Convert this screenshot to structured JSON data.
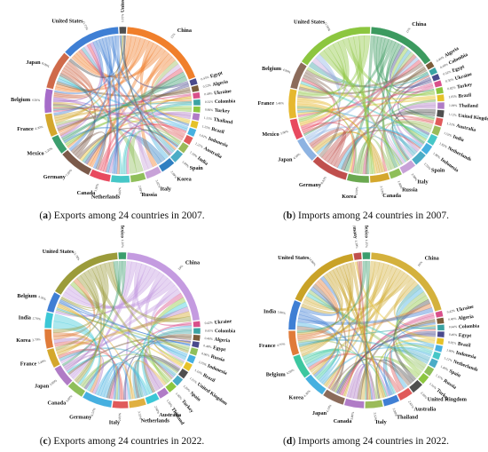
{
  "panels": [
    {
      "letter": "a",
      "caption": "Exports among 24 countries in 2007.",
      "countries": [
        {
          "name": "China",
          "share": 18.5,
          "pct": "15%",
          "color": "#f07f2b"
        },
        {
          "name": "Egypt",
          "share": 1.3,
          "pct": "0.43%",
          "color": "#4a4a8c"
        },
        {
          "name": "Algeria",
          "share": 1.3,
          "pct": "0.52%",
          "color": "#7a5c3a"
        },
        {
          "name": "Ukraine",
          "share": 1.3,
          "pct": "0.48%",
          "color": "#d94f8a"
        },
        {
          "name": "Colombia",
          "share": 1.3,
          "pct": "0.32%",
          "color": "#3aa3a3"
        },
        {
          "name": "Turkey",
          "share": 1.3,
          "pct": "0.88%",
          "color": "#8cc63f"
        },
        {
          "name": "Thailand",
          "share": 1.5,
          "pct": "1.31%",
          "color": "#b07cc6"
        },
        {
          "name": "Brazil",
          "share": 1.5,
          "pct": "1.25%",
          "color": "#e6c229"
        },
        {
          "name": "Indonesia",
          "share": 1.6,
          "pct": "1.02%",
          "color": "#46b0e0"
        },
        {
          "name": "Australia",
          "share": 1.7,
          "pct": "1.21%",
          "color": "#e05a5a"
        },
        {
          "name": "India",
          "share": 1.9,
          "pct": "1.50%",
          "color": "#9bbb59"
        },
        {
          "name": "Spain",
          "share": 2.4,
          "pct": "1.89%",
          "color": "#4bacc6"
        },
        {
          "name": "Korea",
          "share": 3.1,
          "pct": "2.89%",
          "color": "#2f7fc1"
        },
        {
          "name": "Italy",
          "share": 3.3,
          "pct": "3.02%",
          "color": "#c8a2d8"
        },
        {
          "name": "Russia",
          "share": 3.2,
          "pct": "2.89%",
          "color": "#8fbf5a"
        },
        {
          "name": "Netherlands",
          "share": 4.0,
          "pct": "3.86%",
          "color": "#46c7c7"
        },
        {
          "name": "Canada",
          "share": 4.4,
          "pct": "3.90%",
          "color": "#e84a5f"
        },
        {
          "name": "Germany",
          "share": 7.0,
          "pct": "7.09%",
          "color": "#7b5a4a"
        },
        {
          "name": "Mexico",
          "share": 3.9,
          "pct": "3.20%",
          "color": "#3b9e6e"
        },
        {
          "name": "France",
          "share": 4.9,
          "pct": "4.30%",
          "color": "#d4a72c"
        },
        {
          "name": "Belgium",
          "share": 5.1,
          "pct": "4.50%",
          "color": "#a66cc9"
        },
        {
          "name": "Japan",
          "share": 8.2,
          "pct": "8.00%",
          "color": "#cf6a4a"
        },
        {
          "name": "United States",
          "share": 12.5,
          "pct": "11.72%",
          "color": "#3f7fd4"
        },
        {
          "name": "United Kingdom",
          "share": 1.5,
          "pct": "1.03%",
          "color": "#4f4f4f"
        }
      ]
    },
    {
      "letter": "b",
      "caption": "Imports among 24 countries in 2007.",
      "countries": [
        {
          "name": "China",
          "share": 14.0,
          "pct": "11%",
          "color": "#3c9a5f"
        },
        {
          "name": "Algeria",
          "share": 1.2,
          "pct": "0.40%",
          "color": "#7a5c3a"
        },
        {
          "name": "Colombia",
          "share": 1.2,
          "pct": "0.44%",
          "color": "#3aa3a3"
        },
        {
          "name": "Egypt",
          "share": 1.2,
          "pct": "0.52%",
          "color": "#4a4a8c"
        },
        {
          "name": "Ukraine",
          "share": 1.2,
          "pct": "0.50%",
          "color": "#d94f8a"
        },
        {
          "name": "Turkey",
          "share": 1.3,
          "pct": "0.82%",
          "color": "#8cc63f"
        },
        {
          "name": "Brazil",
          "share": 1.4,
          "pct": "1.05%",
          "color": "#e6c229"
        },
        {
          "name": "Thailand",
          "share": 1.4,
          "pct": "1.09%",
          "color": "#b07cc6"
        },
        {
          "name": "United Kingdom",
          "share": 1.5,
          "pct": "1.12%",
          "color": "#4f4f4f"
        },
        {
          "name": "Australia",
          "share": 1.6,
          "pct": "1.21%",
          "color": "#e05a5a"
        },
        {
          "name": "India",
          "share": 1.8,
          "pct": "1.52%",
          "color": "#9bbb59"
        },
        {
          "name": "Netherlands",
          "share": 2.0,
          "pct": "1.82%",
          "color": "#46c7c7"
        },
        {
          "name": "Indonesia",
          "share": 2.0,
          "pct": "1.89%",
          "color": "#46b0e0"
        },
        {
          "name": "Spain",
          "share": 2.7,
          "pct": "2.55%",
          "color": "#4bacc6"
        },
        {
          "name": "Italy",
          "share": 3.0,
          "pct": "2.98%",
          "color": "#c8a2d8"
        },
        {
          "name": "Russia",
          "share": 2.4,
          "pct": "1.90%",
          "color": "#8fbf5a"
        },
        {
          "name": "Canada",
          "share": 4.0,
          "pct": "3.53%",
          "color": "#d4a72c"
        },
        {
          "name": "Korea",
          "share": 4.5,
          "pct": "4.00%",
          "color": "#6aa84f"
        },
        {
          "name": "Germany",
          "share": 7.6,
          "pct": "8.42%",
          "color": "#c0504d"
        },
        {
          "name": "Japan",
          "share": 5.0,
          "pct": "4.50%",
          "color": "#8db3e2"
        },
        {
          "name": "Mexico",
          "share": 4.2,
          "pct": "3.90%",
          "color": "#e84a5f"
        },
        {
          "name": "France",
          "share": 6.0,
          "pct": "5.40%",
          "color": "#e6b82e"
        },
        {
          "name": "Belgium",
          "share": 5.5,
          "pct": "4.90%",
          "color": "#8b6b5a"
        },
        {
          "name": "United States",
          "share": 16.0,
          "pct": "11.99%",
          "color": "#8cc63f"
        }
      ]
    },
    {
      "letter": "c",
      "caption": "Exports among 24 countries in 2022.",
      "countries": [
        {
          "name": "China",
          "share": 21.0,
          "pct": "19%",
          "color": "#c49be0"
        },
        {
          "name": "Ukraine",
          "share": 1.2,
          "pct": "0.42%",
          "color": "#d94f8a"
        },
        {
          "name": "Colombia",
          "share": 1.2,
          "pct": "0.45%",
          "color": "#3aa3a3"
        },
        {
          "name": "Algeria",
          "share": 1.2,
          "pct": "0.40%",
          "color": "#7a5c3a"
        },
        {
          "name": "Egypt",
          "share": 1.2,
          "pct": "0.48%",
          "color": "#4a4a8c"
        },
        {
          "name": "Russia",
          "share": 1.4,
          "pct": "0.96%",
          "color": "#8fbf5a"
        },
        {
          "name": "Indonesia",
          "share": 1.5,
          "pct": "1.05%",
          "color": "#46b0e0"
        },
        {
          "name": "Brazil",
          "share": 1.5,
          "pct": "1.10%",
          "color": "#e6c229"
        },
        {
          "name": "United Kingdom",
          "share": 1.6,
          "pct": "1.21%",
          "color": "#4f4f4f"
        },
        {
          "name": "Spain",
          "share": 1.7,
          "pct": "1.29%",
          "color": "#4bacc6"
        },
        {
          "name": "Turkey",
          "share": 1.8,
          "pct": "1.40%",
          "color": "#8cc63f"
        },
        {
          "name": "Thailand",
          "share": 2.0,
          "pct": "1.58%",
          "color": "#b07cc6"
        },
        {
          "name": "Australia",
          "share": 2.6,
          "pct": "2.60%",
          "color": "#3cc7d6"
        },
        {
          "name": "Netherlands",
          "share": 3.4,
          "pct": "3.33%",
          "color": "#e0b040"
        },
        {
          "name": "Italy",
          "share": 3.2,
          "pct": "2.89%",
          "color": "#e05a5a"
        },
        {
          "name": "Germany",
          "share": 6.0,
          "pct": "6.57%",
          "color": "#46b0e0"
        },
        {
          "name": "Canada",
          "share": 3.4,
          "pct": "3.00%",
          "color": "#8fbf5a"
        },
        {
          "name": "Japan",
          "share": 4.2,
          "pct": "3.80%",
          "color": "#b07cc6"
        },
        {
          "name": "France",
          "share": 3.8,
          "pct": "3.40%",
          "color": "#d4a72c"
        },
        {
          "name": "Korea",
          "share": 3.9,
          "pct": "3.70%",
          "color": "#e07b39"
        },
        {
          "name": "India",
          "share": 3.2,
          "pct": "2.70%",
          "color": "#3cc7d6"
        },
        {
          "name": "Belgium",
          "share": 4.0,
          "pct": "4.30%",
          "color": "#3f7fd4"
        },
        {
          "name": "United States",
          "share": 15.0,
          "pct": "13.78%",
          "color": "#9b9b3a"
        },
        {
          "name": "Mexico",
          "share": 1.6,
          "pct": "1.20%",
          "color": "#3b9e6e"
        }
      ]
    },
    {
      "letter": "d",
      "caption": "Imports among 24 countries in 2022.",
      "countries": [
        {
          "name": "China",
          "share": 19.0,
          "pct": "16%",
          "color": "#d4b13c"
        },
        {
          "name": "Ukraine",
          "share": 1.2,
          "pct": "0.42%",
          "color": "#d94f8a"
        },
        {
          "name": "Algeria",
          "share": 1.2,
          "pct": "0.40%",
          "color": "#7a5c3a"
        },
        {
          "name": "Colombia",
          "share": 1.2,
          "pct": "0.44%",
          "color": "#3aa3a3"
        },
        {
          "name": "Egypt",
          "share": 1.2,
          "pct": "0.49%",
          "color": "#4a4a8c"
        },
        {
          "name": "Brazil",
          "share": 1.3,
          "pct": "0.92%",
          "color": "#e6c229"
        },
        {
          "name": "Indonesia",
          "share": 1.3,
          "pct": "1.00%",
          "color": "#46b0e0"
        },
        {
          "name": "Netherlands",
          "share": 1.4,
          "pct": "1.12%",
          "color": "#46c7c7"
        },
        {
          "name": "Spain",
          "share": 1.6,
          "pct": "1.40%",
          "color": "#4bacc6"
        },
        {
          "name": "Russia",
          "share": 1.7,
          "pct": "1.37%",
          "color": "#8fbf5a"
        },
        {
          "name": "Turkey",
          "share": 1.8,
          "pct": "1.51%",
          "color": "#8cc63f"
        },
        {
          "name": "United Kingdom",
          "share": 2.4,
          "pct": "2.28%",
          "color": "#4f4f4f"
        },
        {
          "name": "Australia",
          "share": 2.8,
          "pct": "2.61%",
          "color": "#e05a5a"
        },
        {
          "name": "Thailand",
          "share": 3.2,
          "pct": "2.98%",
          "color": "#3f7fd4"
        },
        {
          "name": "Italy",
          "share": 3.6,
          "pct": "3.52%",
          "color": "#9bbb59"
        },
        {
          "name": "Canada",
          "share": 4.0,
          "pct": "3.80%",
          "color": "#b07cc6"
        },
        {
          "name": "Japan",
          "share": 4.4,
          "pct": "4.10%",
          "color": "#8b6b5a"
        },
        {
          "name": "Korea",
          "share": 4.6,
          "pct": "4.30%",
          "color": "#46b0e0"
        },
        {
          "name": "Belgium",
          "share": 4.8,
          "pct": "4.50%",
          "color": "#3cc7a0"
        },
        {
          "name": "France",
          "share": 5.0,
          "pct": "4.70%",
          "color": "#e07b39"
        },
        {
          "name": "India",
          "share": 6.0,
          "pct": "5.80%",
          "color": "#3f7fd4"
        },
        {
          "name": "United States",
          "share": 15.0,
          "pct": "14.86%",
          "color": "#c9a227"
        },
        {
          "name": "Germany",
          "share": 1.6,
          "pct": "1.30%",
          "color": "#c0504d"
        },
        {
          "name": "Mexico",
          "share": 1.6,
          "pct": "1.25%",
          "color": "#3b9e6e"
        }
      ]
    }
  ]
}
